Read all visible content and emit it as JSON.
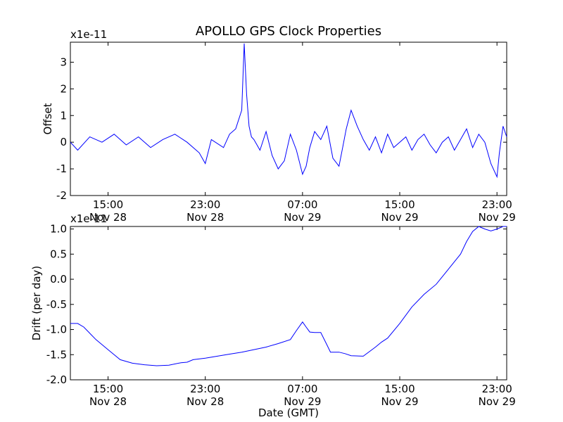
{
  "figure": {
    "title": "APOLLO GPS Clock Properties",
    "xlabel": "Date (GMT)"
  },
  "chart_data": [
    {
      "type": "line",
      "title": "APOLLO GPS Clock Properties",
      "ylabel": "Offset",
      "y_multiplier": "x1e-11",
      "ylim": [
        -2,
        3.75
      ],
      "yticks": [
        "-2",
        "-1",
        "0",
        "1",
        "2",
        "3"
      ],
      "xlim": [
        "Nov 28 11:50",
        "Nov 29 23:50"
      ],
      "xticks": [
        {
          "time": "15:00",
          "date": "Nov 28"
        },
        {
          "time": "23:00",
          "date": "Nov 28"
        },
        {
          "time": "07:00",
          "date": "Nov 29"
        },
        {
          "time": "15:00",
          "date": "Nov 29"
        },
        {
          "time": "23:00",
          "date": "Nov 29"
        }
      ],
      "line_color": "#0000ff",
      "series": [
        {
          "x_hours_note": "hours since Nov 28 00:00 GMT",
          "x": [
            11.9,
            12.5,
            13.5,
            14.5,
            15.5,
            16.5,
            17.5,
            18.5,
            19.5,
            20.5,
            21.5,
            22.5,
            23.0,
            23.5,
            24.5,
            25.0,
            25.5,
            26.0,
            26.2,
            26.4,
            26.6,
            26.8,
            27.0,
            27.5,
            28.0,
            28.5,
            29.0,
            29.5,
            30.0,
            30.5,
            31.0,
            31.3,
            31.6,
            32.0,
            32.5,
            33.0,
            33.5,
            34.0,
            34.3,
            34.6,
            35.0,
            35.5,
            36.0,
            36.5,
            37.0,
            37.5,
            38.0,
            38.5,
            39.0,
            39.5,
            40.0,
            40.5,
            41.0,
            41.5,
            42.0,
            42.5,
            43.0,
            43.5,
            44.0,
            44.5,
            45.0,
            45.5,
            46.0,
            46.5,
            47.0,
            47.2,
            47.5,
            47.8
          ],
          "y": [
            0.0,
            -0.3,
            0.2,
            0.0,
            0.3,
            -0.1,
            0.2,
            -0.2,
            0.1,
            0.3,
            0.0,
            -0.4,
            -0.8,
            0.1,
            -0.2,
            0.3,
            0.5,
            1.2,
            3.7,
            1.8,
            0.6,
            0.2,
            0.1,
            -0.3,
            0.4,
            -0.5,
            -1.0,
            -0.7,
            0.3,
            -0.3,
            -1.2,
            -0.9,
            -0.2,
            0.4,
            0.1,
            0.6,
            -0.6,
            -0.9,
            -0.2,
            0.5,
            1.2,
            0.6,
            0.1,
            -0.3,
            0.2,
            -0.4,
            0.3,
            -0.2,
            0.0,
            0.2,
            -0.3,
            0.1,
            0.3,
            -0.1,
            -0.4,
            0.0,
            0.2,
            -0.3,
            0.1,
            0.5,
            -0.2,
            0.3,
            0.0,
            -0.8,
            -1.3,
            -0.4,
            0.6,
            0.2
          ]
        }
      ]
    },
    {
      "type": "line",
      "ylabel": "Drift (per day)",
      "xlabel": "Date (GMT)",
      "y_multiplier": "x1e-11",
      "ylim": [
        -2.0,
        1.05
      ],
      "yticks": [
        "-2.0",
        "-1.5",
        "-1.0",
        "-0.5",
        "0.0",
        "0.5",
        "1.0"
      ],
      "xlim": [
        "Nov 28 11:50",
        "Nov 29 23:50"
      ],
      "xticks": [
        {
          "time": "15:00",
          "date": "Nov 28"
        },
        {
          "time": "23:00",
          "date": "Nov 28"
        },
        {
          "time": "07:00",
          "date": "Nov 29"
        },
        {
          "time": "15:00",
          "date": "Nov 29"
        },
        {
          "time": "23:00",
          "date": "Nov 29"
        }
      ],
      "line_color": "#0000ff",
      "series": [
        {
          "x": [
            11.9,
            12.5,
            13.0,
            14.0,
            15.0,
            16.0,
            17.0,
            18.0,
            19.0,
            20.0,
            21.0,
            21.5,
            22.0,
            23.0,
            24.0,
            25.0,
            26.0,
            27.0,
            28.0,
            29.0,
            30.0,
            30.5,
            31.0,
            31.3,
            31.6,
            32.0,
            32.5,
            33.0,
            33.3,
            33.7,
            34.0,
            34.5,
            35.0,
            36.0,
            37.0,
            37.5,
            38.0,
            39.0,
            40.0,
            41.0,
            42.0,
            43.0,
            44.0,
            44.5,
            45.0,
            45.5,
            46.0,
            46.5,
            47.0,
            47.5,
            47.8
          ],
          "y": [
            -0.88,
            -0.88,
            -0.95,
            -1.2,
            -1.4,
            -1.6,
            -1.67,
            -1.7,
            -1.72,
            -1.71,
            -1.66,
            -1.65,
            -1.6,
            -1.57,
            -1.53,
            -1.49,
            -1.45,
            -1.4,
            -1.35,
            -1.28,
            -1.2,
            -1.02,
            -0.85,
            -0.95,
            -1.05,
            -1.06,
            -1.06,
            -1.3,
            -1.45,
            -1.45,
            -1.45,
            -1.48,
            -1.52,
            -1.53,
            -1.35,
            -1.25,
            -1.17,
            -0.88,
            -0.55,
            -0.3,
            -0.1,
            0.2,
            0.5,
            0.75,
            0.95,
            1.05,
            1.0,
            0.96,
            1.0,
            1.05,
            1.05
          ]
        }
      ]
    }
  ]
}
